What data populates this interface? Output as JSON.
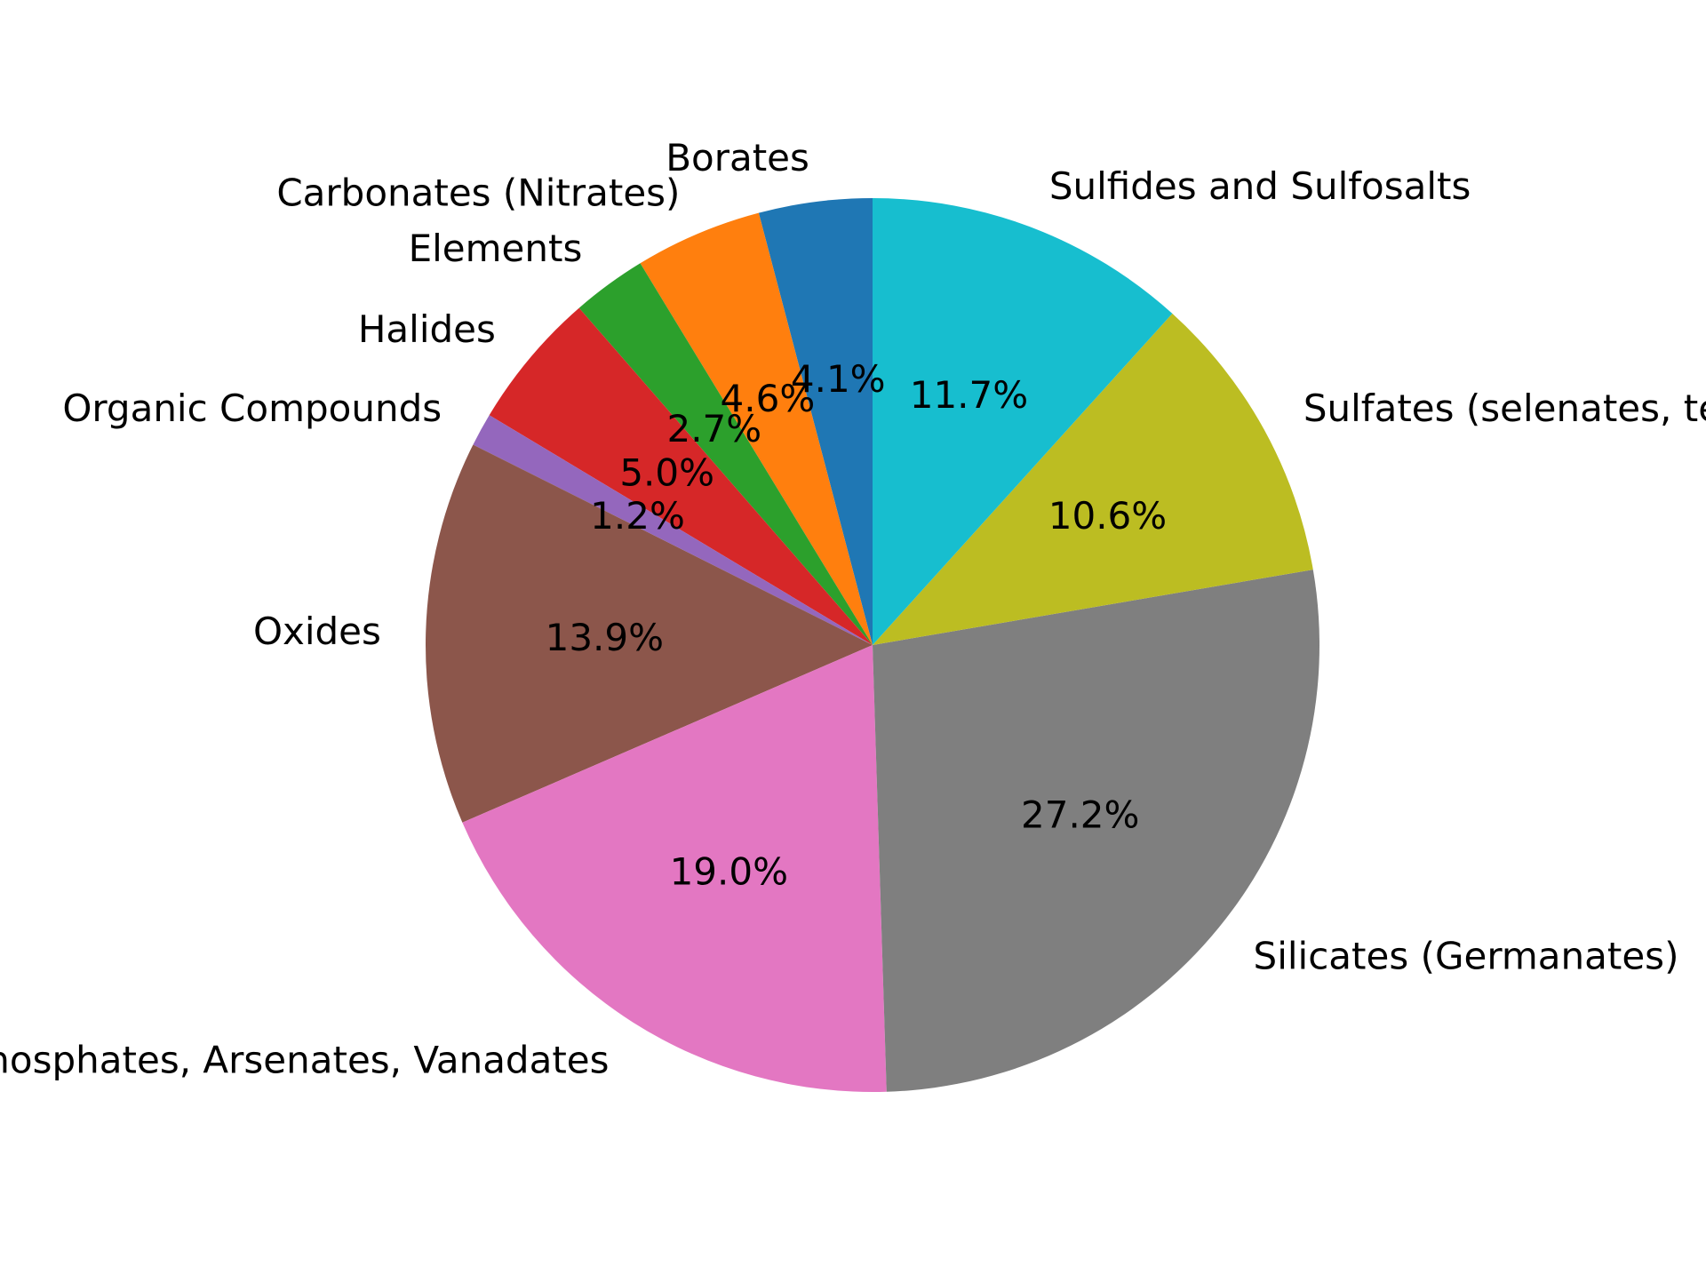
{
  "chart_data": {
    "type": "pie",
    "start_angle_deg": 90,
    "direction": "counterclockwise",
    "slices": [
      {
        "label": "Borates",
        "value": 4.1,
        "pct_label": "4.1%",
        "color": "#1f77b4"
      },
      {
        "label": "Carbonates (Nitrates)",
        "value": 4.6,
        "pct_label": "4.6%",
        "color": "#ff7f0e"
      },
      {
        "label": "Elements",
        "value": 2.7,
        "pct_label": "2.7%",
        "color": "#2ca02c"
      },
      {
        "label": "Halides",
        "value": 5.0,
        "pct_label": "5.0%",
        "color": "#d62728"
      },
      {
        "label": "Organic Compounds",
        "value": 1.2,
        "pct_label": "1.2%",
        "color": "#9467bd"
      },
      {
        "label": "Oxides",
        "value": 13.9,
        "pct_label": "13.9%",
        "color": "#8c564b"
      },
      {
        "label": "Phosphates, Arsenates, Vanadates",
        "value": 19.0,
        "pct_label": "19.0%",
        "color": "#e377c2"
      },
      {
        "label": "Silicates (Germanates)",
        "value": 27.2,
        "pct_label": "27.2%",
        "color": "#7f7f7f"
      },
      {
        "label": "Sulfates (selenates, tellurates, chromates, molybdates, wolframates)",
        "value": 10.6,
        "pct_label": "10.6%",
        "color": "#bcbd22"
      },
      {
        "label": "Sulfides and Sulfosalts",
        "value": 11.7,
        "pct_label": "11.7%",
        "color": "#17becf"
      }
    ]
  }
}
